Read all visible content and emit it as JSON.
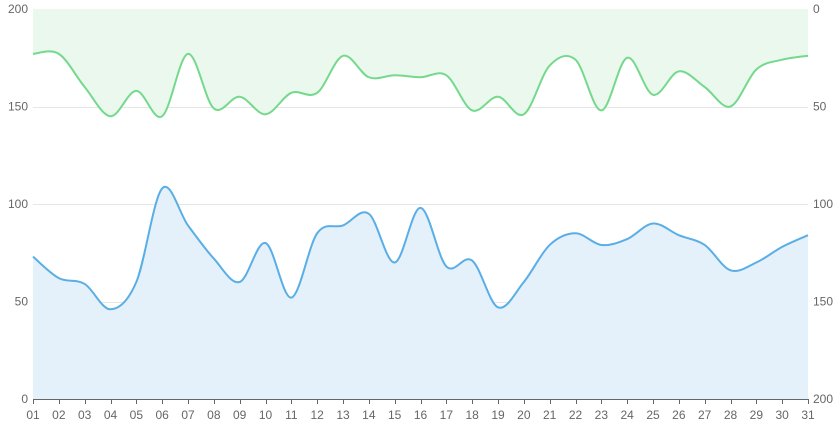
{
  "chart_data": {
    "type": "area",
    "x": [
      "01",
      "02",
      "03",
      "04",
      "05",
      "06",
      "07",
      "08",
      "09",
      "10",
      "11",
      "12",
      "13",
      "14",
      "15",
      "16",
      "17",
      "18",
      "19",
      "20",
      "21",
      "22",
      "23",
      "24",
      "25",
      "26",
      "27",
      "28",
      "29",
      "30",
      "31"
    ],
    "series": [
      {
        "axis": "left",
        "color": "#5aaee6",
        "fill": "#e4f1fb",
        "values": [
          73,
          62,
          59,
          46,
          60,
          108,
          89,
          72,
          60,
          80,
          52,
          85,
          89,
          95,
          70,
          98,
          68,
          71,
          47,
          60,
          79,
          85,
          79,
          82,
          90,
          84,
          79,
          66,
          70,
          78,
          84
        ]
      },
      {
        "axis": "right-inverted",
        "color": "#74d98c",
        "fill": "#eaf8ee",
        "values": [
          23,
          23,
          40,
          55,
          42,
          55,
          23,
          51,
          45,
          54,
          43,
          43,
          24,
          35,
          34,
          35,
          34,
          52,
          45,
          54,
          29,
          26,
          52,
          25,
          44,
          32,
          40,
          50,
          31,
          26,
          24
        ]
      }
    ],
    "y_left": {
      "min": 0,
      "max": 200,
      "ticks": [
        "0",
        "50",
        "100",
        "150",
        "200"
      ]
    },
    "y_right": {
      "min": 0,
      "max": 200,
      "inverted": true,
      "ticks": [
        "200",
        "150",
        "100",
        "50",
        "0"
      ]
    },
    "grid": true,
    "legend": "none"
  }
}
